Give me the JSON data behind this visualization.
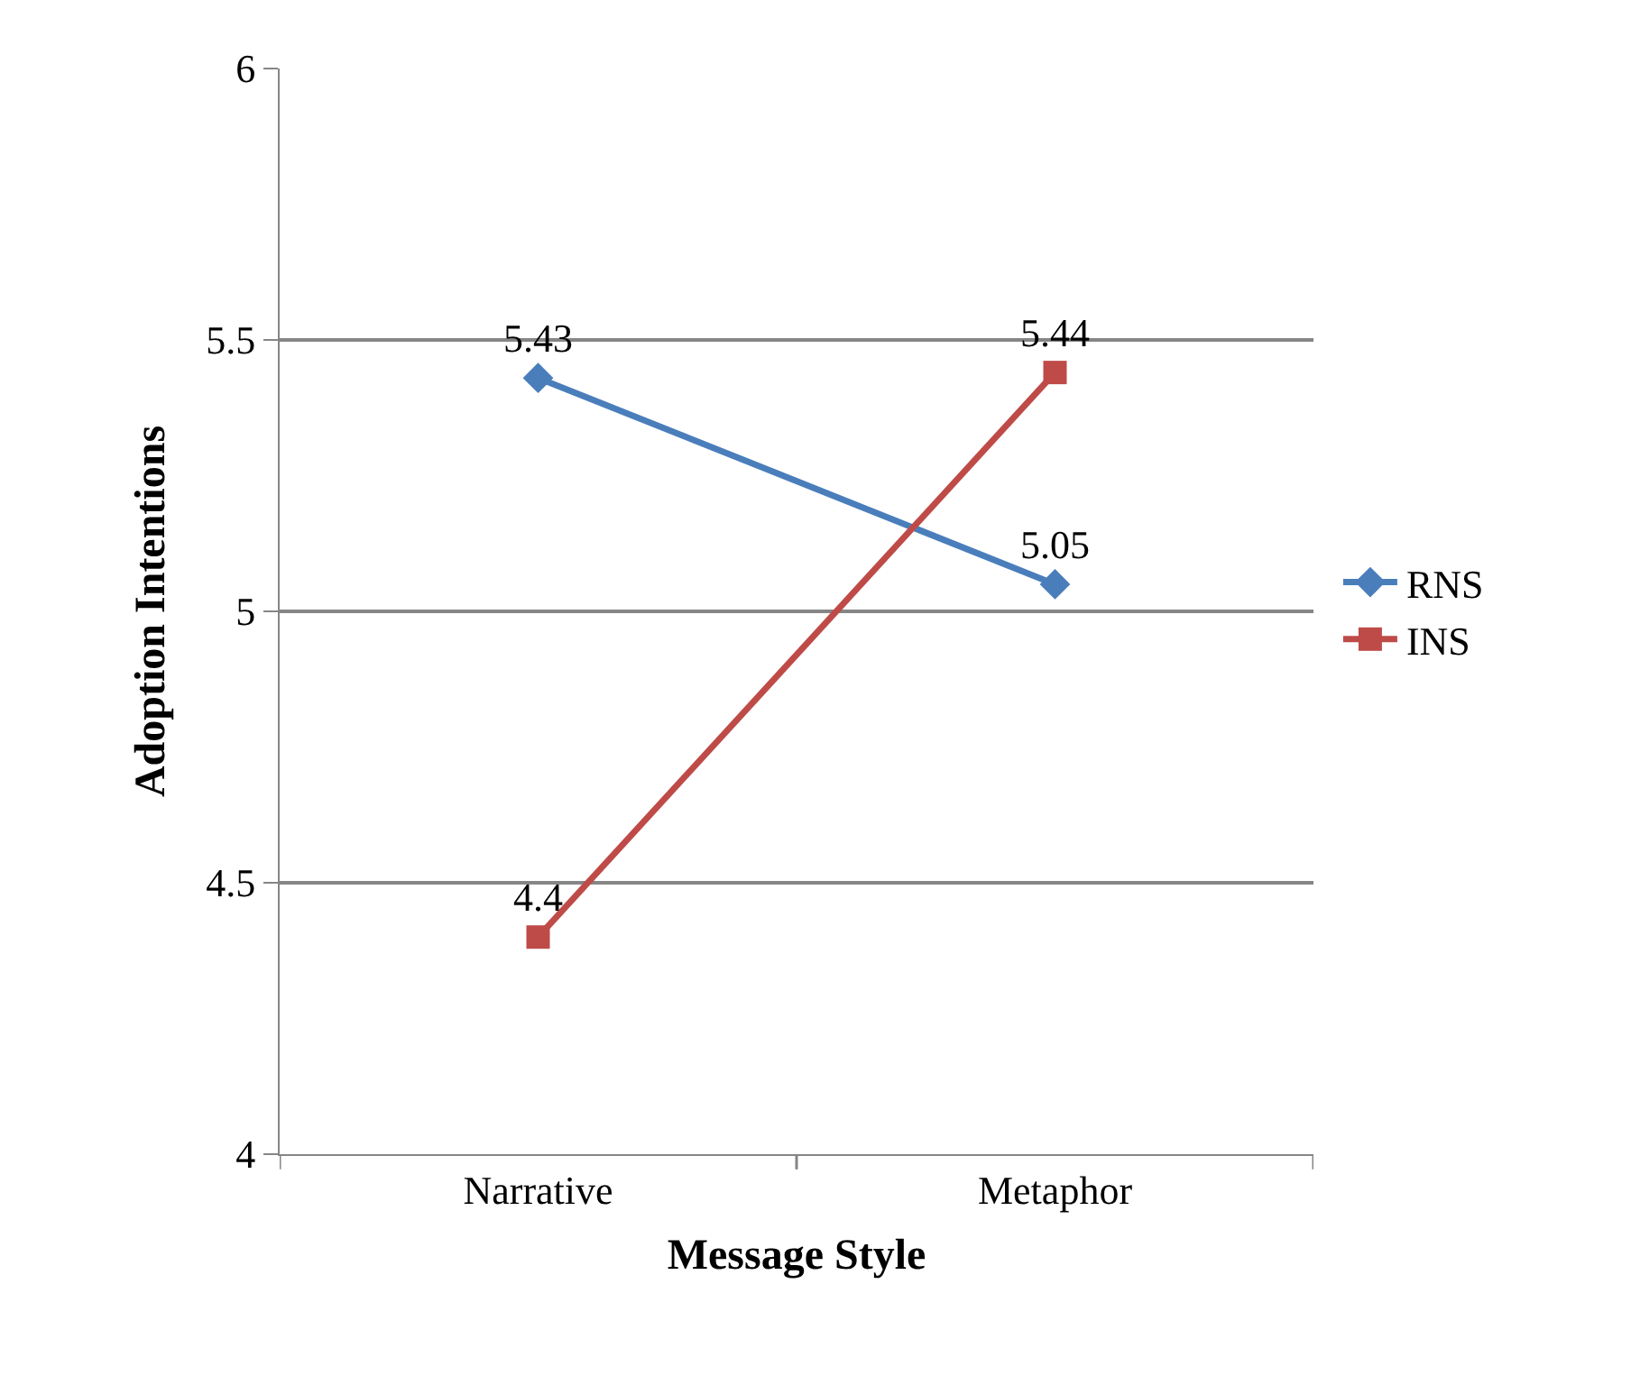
{
  "chart_data": {
    "type": "line",
    "xlabel": "Message Style",
    "ylabel": "Adoption Intentions",
    "categories": [
      "Narrative",
      "Metaphor"
    ],
    "series": [
      {
        "name": "RNS",
        "color": "#4a7ebb",
        "values": [
          5.43,
          5.05
        ],
        "marker": "diamond"
      },
      {
        "name": "INS",
        "color": "#be4b48",
        "values": [
          4.4,
          5.44
        ],
        "marker": "square"
      }
    ],
    "ylim": [
      4,
      6
    ],
    "yticks": [
      4,
      4.5,
      5,
      5.5,
      6
    ],
    "grid": "y",
    "legend": "right",
    "data_labels": true
  }
}
